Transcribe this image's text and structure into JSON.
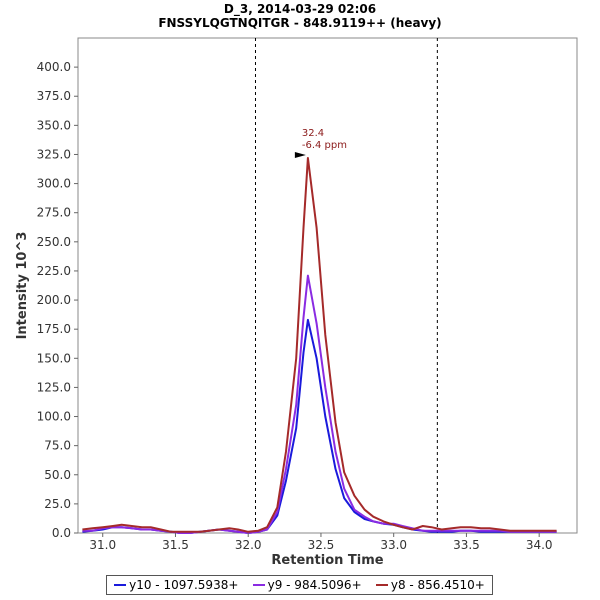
{
  "chart_data": {
    "type": "line",
    "title": "D_3, 2014-03-29 02:06",
    "subtitle": "FNSSYLQGTNQITGR - 848.9119++ (heavy)",
    "xlabel": "Retention Time",
    "ylabel": "Intensity 10^3",
    "xlim": [
      30.83,
      34.26
    ],
    "ylim": [
      0,
      425
    ],
    "x_ticks": [
      "31.0",
      "31.5",
      "32.0",
      "32.5",
      "33.0",
      "33.5",
      "34.0"
    ],
    "y_ticks": [
      "0.0",
      "25.0",
      "50.0",
      "75.0",
      "100.0",
      "125.0",
      "150.0",
      "175.0",
      "200.0",
      "225.0",
      "250.0",
      "275.0",
      "300.0",
      "325.0",
      "350.0",
      "375.0",
      "400.0"
    ],
    "grid": false,
    "legend_position": "bottom",
    "boundaries": [
      32.05,
      33.3
    ],
    "annotation": {
      "x": 32.41,
      "y": 322,
      "label": "32.4",
      "sublabel": "-6.4 ppm",
      "color": "#8b1a1a"
    },
    "x": [
      30.86,
      30.93,
      31.0,
      31.07,
      31.13,
      31.2,
      31.27,
      31.33,
      31.4,
      31.47,
      31.53,
      31.6,
      31.67,
      31.73,
      31.8,
      31.87,
      31.93,
      32.0,
      32.07,
      32.13,
      32.2,
      32.26,
      32.33,
      32.38,
      32.41,
      32.47,
      32.53,
      32.6,
      32.66,
      32.73,
      32.8,
      32.86,
      32.93,
      33.0,
      33.06,
      33.13,
      33.2,
      33.26,
      33.33,
      33.4,
      33.46,
      33.53,
      33.6,
      33.66,
      33.73,
      33.8,
      33.86,
      33.93,
      34.0,
      34.06,
      34.12
    ],
    "series": [
      {
        "name": "y10 - 1097.5938+",
        "color": "#1a1adc",
        "values": [
          1,
          2,
          3,
          5,
          5,
          4,
          3,
          3,
          2,
          1,
          0,
          0,
          1,
          2,
          3,
          2,
          1,
          0,
          1,
          3,
          15,
          45,
          90,
          155,
          183,
          150,
          100,
          55,
          30,
          18,
          12,
          10,
          8,
          7,
          5,
          3,
          2,
          1,
          1,
          1,
          2,
          2,
          1,
          1,
          1,
          1,
          1,
          1,
          1,
          1,
          1
        ]
      },
      {
        "name": "y9 - 984.5096+",
        "color": "#8a2be2",
        "values": [
          2,
          2,
          4,
          5,
          5,
          4,
          3,
          3,
          2,
          1,
          0,
          0,
          1,
          2,
          3,
          2,
          1,
          0,
          1,
          3,
          18,
          55,
          110,
          185,
          221,
          180,
          125,
          70,
          38,
          20,
          14,
          10,
          8,
          8,
          6,
          4,
          2,
          2,
          2,
          2,
          2,
          2,
          2,
          2,
          2,
          1,
          1,
          1,
          1,
          1,
          1
        ]
      },
      {
        "name": "y8 - 856.4510+",
        "color": "#a52a2a",
        "values": [
          3,
          4,
          5,
          6,
          7,
          6,
          5,
          5,
          3,
          1,
          1,
          1,
          1,
          2,
          3,
          4,
          3,
          1,
          2,
          5,
          22,
          70,
          150,
          262,
          322,
          262,
          170,
          95,
          52,
          32,
          20,
          14,
          10,
          7,
          5,
          3,
          6,
          5,
          3,
          4,
          5,
          5,
          4,
          4,
          3,
          2,
          2,
          2,
          2,
          2,
          2
        ]
      }
    ]
  }
}
